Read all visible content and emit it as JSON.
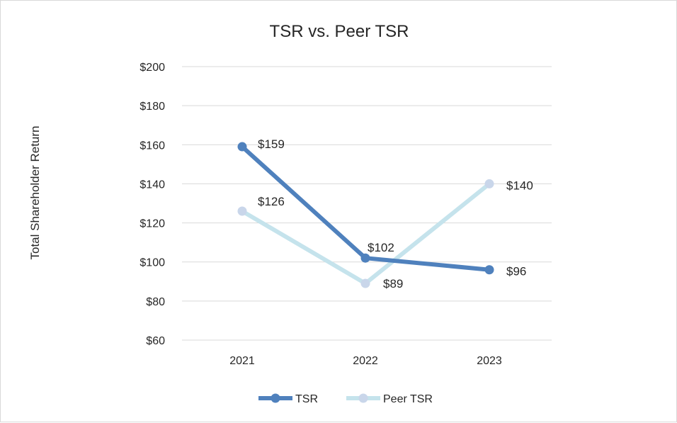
{
  "chart_data": {
    "type": "line",
    "title": "TSR vs. Peer TSR",
    "xlabel": "",
    "ylabel": "Total Shareholder Return",
    "categories": [
      "2021",
      "2022",
      "2023"
    ],
    "ylim": [
      60,
      200
    ],
    "yticks": [
      60,
      80,
      100,
      120,
      140,
      160,
      180,
      200
    ],
    "ytick_labels": [
      "$60",
      "$80",
      "$100",
      "$120",
      "$140",
      "$160",
      "$180",
      "$200"
    ],
    "grid": true,
    "legend_position": "bottom",
    "series": [
      {
        "name": "TSR",
        "values": [
          159,
          102,
          96
        ],
        "labels": [
          "$159",
          "$102",
          "$96"
        ],
        "color": "#4f81bd"
      },
      {
        "name": "Peer TSR",
        "values": [
          126,
          89,
          140
        ],
        "labels": [
          "$126",
          "$89",
          "$140"
        ],
        "color": "#c5e3ec",
        "marker_color": "#c9d6ea"
      }
    ]
  }
}
